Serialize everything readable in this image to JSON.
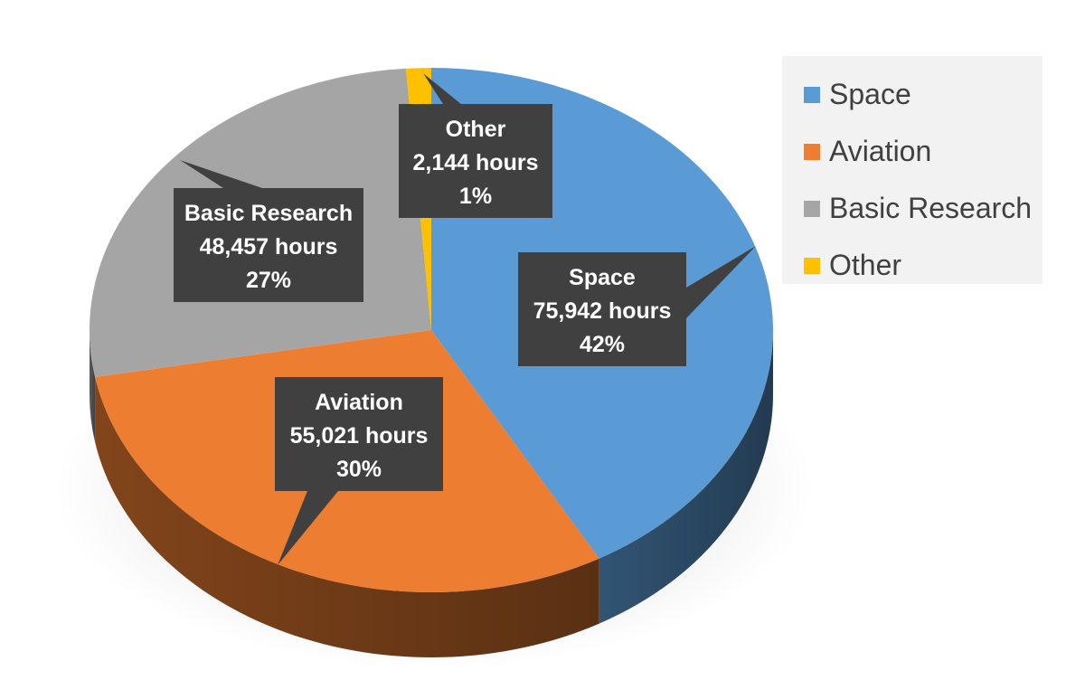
{
  "chart_data": {
    "type": "pie",
    "title": "",
    "legend_position": "right",
    "slices": [
      {
        "name": "Space",
        "hours": 75942,
        "hours_label": "75,942 hours",
        "percent": 42,
        "percent_label": "42%",
        "color": "#5b9bd5"
      },
      {
        "name": "Aviation",
        "hours": 55021,
        "hours_label": "55,021 hours",
        "percent": 30,
        "percent_label": "30%",
        "color": "#ed7d31"
      },
      {
        "name": "Basic Research",
        "hours": 48457,
        "hours_label": "48,457 hours",
        "percent": 27,
        "percent_label": "27%",
        "color": "#a5a5a5"
      },
      {
        "name": "Other",
        "hours": 2144,
        "hours_label": "2,144 hours",
        "percent": 1,
        "percent_label": "1%",
        "color": "#ffc000"
      }
    ],
    "legend": [
      "Space",
      "Aviation",
      "Basic Research",
      "Other"
    ],
    "callout_color": "#404040",
    "callout_text_color": "#ffffff"
  }
}
